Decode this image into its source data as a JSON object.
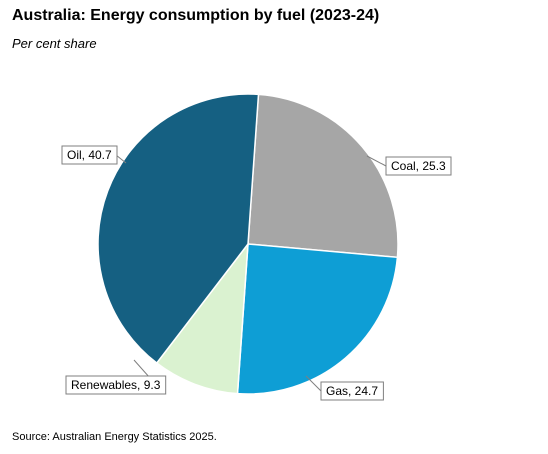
{
  "chart_data": {
    "type": "pie",
    "title": "Australia: Energy consumption by fuel (2023-24)",
    "subtitle": "Per cent share",
    "source": "Source: Australian Energy Statistics 2025.",
    "unit": "per cent",
    "start": "12 o'clock, clockwise",
    "slices": [
      {
        "label": "Coal",
        "value": 25.3,
        "color": "#a6a6a6"
      },
      {
        "label": "Gas",
        "value": 24.7,
        "color": "#0e9ed5"
      },
      {
        "label": "Renewables",
        "value": 9.3,
        "color": "#daf2d0"
      },
      {
        "label": "Oil",
        "value": 40.7,
        "color": "#156082"
      }
    ],
    "data_labels": [
      "Coal, 25.3",
      "Gas, 24.7",
      "Renewables, 9.3",
      "Oil, 40.7"
    ],
    "legend": "none"
  }
}
